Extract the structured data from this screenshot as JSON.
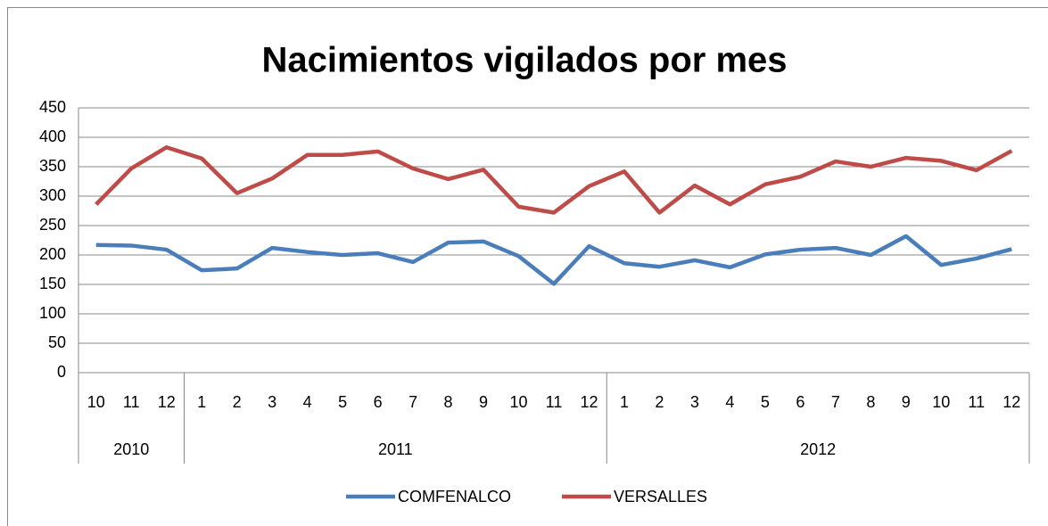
{
  "chart_data": {
    "type": "line",
    "title": "Nacimientos vigilados por mes",
    "category_groups": [
      {
        "name": "2010",
        "categories": [
          "10",
          "11",
          "12"
        ]
      },
      {
        "name": "2011",
        "categories": [
          "1",
          "2",
          "3",
          "4",
          "5",
          "6",
          "7",
          "8",
          "9",
          "10",
          "11",
          "12"
        ]
      },
      {
        "name": "2012",
        "categories": [
          "1",
          "2",
          "3",
          "4",
          "5",
          "6",
          "7",
          "8",
          "9",
          "10",
          "11",
          "12"
        ]
      }
    ],
    "series": [
      {
        "name": "COMFENALCO",
        "color": "#4a7ebb",
        "values": [
          217,
          216,
          209,
          174,
          177,
          212,
          205,
          200,
          203,
          188,
          221,
          223,
          198,
          151,
          215,
          186,
          180,
          191,
          179,
          201,
          209,
          212,
          200,
          232,
          183,
          194,
          210
        ]
      },
      {
        "name": "VERSALLES",
        "color": "#be4b48",
        "values": [
          286,
          347,
          383,
          364,
          305,
          330,
          370,
          370,
          376,
          347,
          329,
          345,
          282,
          272,
          317,
          342,
          272,
          318,
          286,
          320,
          333,
          359,
          350,
          365,
          360,
          344,
          377
        ]
      }
    ],
    "ylim": [
      0,
      450
    ],
    "yticks": [
      0,
      50,
      100,
      150,
      200,
      250,
      300,
      350,
      400,
      450
    ],
    "grid": true,
    "legend": "bottom"
  }
}
